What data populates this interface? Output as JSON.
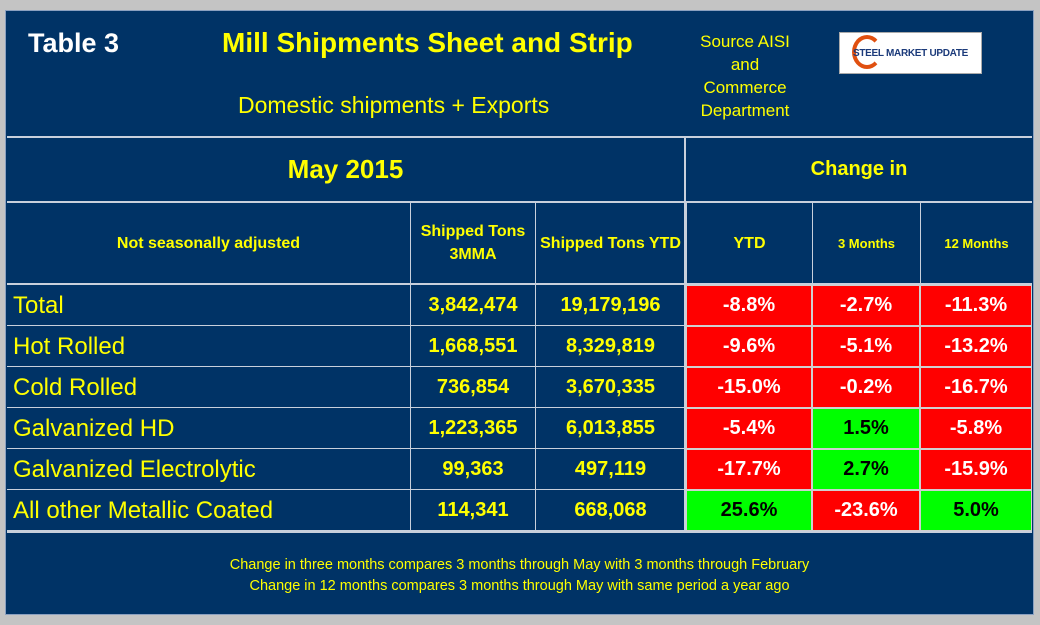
{
  "header": {
    "table_label": "Table 3",
    "title": "Mill Shipments Sheet and Strip",
    "subtitle": "Domestic shipments + Exports",
    "source": [
      "Source AISI",
      "and",
      "Commerce",
      "Department"
    ],
    "logo_text": "STEEL MARKET UPDATE"
  },
  "period": "May 2015",
  "change_in": "Change in",
  "columns": [
    "Not seasonally adjusted",
    "Shipped Tons 3MMA",
    "Shipped Tons YTD",
    "YTD",
    "3 Months",
    "12 Months"
  ],
  "rows": [
    {
      "label": "Total",
      "tons_3mma": "3,842,474",
      "tons_ytd": "19,179,196",
      "chg_ytd": "-8.8%",
      "chg_3m": "-2.7%",
      "chg_12m": "-11.3%"
    },
    {
      "label": "Hot Rolled",
      "tons_3mma": "1,668,551",
      "tons_ytd": "8,329,819",
      "chg_ytd": "-9.6%",
      "chg_3m": "-5.1%",
      "chg_12m": "-13.2%"
    },
    {
      "label": "Cold Rolled",
      "tons_3mma": "736,854",
      "tons_ytd": "3,670,335",
      "chg_ytd": "-15.0%",
      "chg_3m": "-0.2%",
      "chg_12m": "-16.7%"
    },
    {
      "label": "Galvanized HD",
      "tons_3mma": "1,223,365",
      "tons_ytd": "6,013,855",
      "chg_ytd": "-5.4%",
      "chg_3m": "1.5%",
      "chg_12m": "-5.8%"
    },
    {
      "label": "Galvanized Electrolytic",
      "tons_3mma": "99,363",
      "tons_ytd": "497,119",
      "chg_ytd": "-17.7%",
      "chg_3m": "2.7%",
      "chg_12m": "-15.9%"
    },
    {
      "label": "All other Metallic Coated",
      "tons_3mma": "114,341",
      "tons_ytd": "668,068",
      "chg_ytd": "25.6%",
      "chg_3m": "-23.6%",
      "chg_12m": "5.0%"
    }
  ],
  "footnotes": [
    "Change in three months compares 3 months through May with 3 months through February",
    "Change in 12 months compares 3 months through May with same period a year ago"
  ],
  "colors": {
    "background": "#003366",
    "text": "#ffff00",
    "negative": "#ff0000",
    "positive": "#00ff00"
  }
}
